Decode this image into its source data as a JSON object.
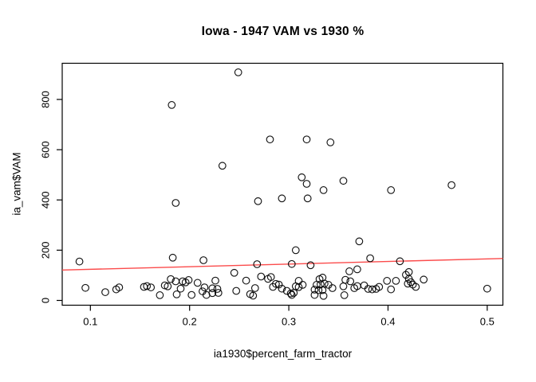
{
  "chart_data": {
    "type": "scatter",
    "title": "Iowa - 1947 VAM vs 1930 %",
    "xlabel": "ia1930$percent_farm_tractor",
    "ylabel": "ia_vam$VAM",
    "xlim": [
      0.0716,
      0.5158
    ],
    "ylim": [
      -19,
      944
    ],
    "x_ticks": [
      0.1,
      0.2,
      0.3,
      0.4,
      0.5
    ],
    "x_tick_labels": [
      "0.1",
      "0.2",
      "0.3",
      "0.4",
      "0.5"
    ],
    "y_ticks": [
      0,
      200,
      400,
      600,
      800
    ],
    "y_tick_labels": [
      "0",
      "200",
      "400",
      "600",
      "800"
    ],
    "grid": false,
    "legend": null,
    "colors": {
      "points": "#000000",
      "regression_line": "#fb4b4b",
      "axis": "#000000",
      "background": "#ffffff"
    },
    "regression_line": {
      "x1": 0.0716,
      "y1": 121,
      "x2": 0.5158,
      "y2": 167
    },
    "points": [
      [
        0.249,
        908
      ],
      [
        0.182,
        778
      ],
      [
        0.281,
        641
      ],
      [
        0.318,
        641
      ],
      [
        0.342,
        629
      ],
      [
        0.233,
        536
      ],
      [
        0.313,
        490
      ],
      [
        0.355,
        476
      ],
      [
        0.318,
        464
      ],
      [
        0.464,
        459
      ],
      [
        0.335,
        439
      ],
      [
        0.403,
        439
      ],
      [
        0.293,
        406
      ],
      [
        0.319,
        406
      ],
      [
        0.269,
        395
      ],
      [
        0.186,
        388
      ],
      [
        0.371,
        235
      ],
      [
        0.307,
        200
      ],
      [
        0.183,
        170
      ],
      [
        0.214,
        160
      ],
      [
        0.089,
        155
      ],
      [
        0.382,
        168
      ],
      [
        0.412,
        156
      ],
      [
        0.268,
        144
      ],
      [
        0.303,
        145
      ],
      [
        0.322,
        140
      ],
      [
        0.369,
        124
      ],
      [
        0.361,
        116
      ],
      [
        0.245,
        110
      ],
      [
        0.418,
        102
      ],
      [
        0.421,
        113
      ],
      [
        0.095,
        50
      ],
      [
        0.115,
        33
      ],
      [
        0.126,
        44
      ],
      [
        0.129,
        52
      ],
      [
        0.154,
        54
      ],
      [
        0.157,
        57
      ],
      [
        0.161,
        52
      ],
      [
        0.17,
        21
      ],
      [
        0.175,
        60
      ],
      [
        0.178,
        56
      ],
      [
        0.181,
        85
      ],
      [
        0.186,
        76
      ],
      [
        0.187,
        24
      ],
      [
        0.191,
        47
      ],
      [
        0.193,
        76
      ],
      [
        0.196,
        72
      ],
      [
        0.199,
        81
      ],
      [
        0.202,
        22
      ],
      [
        0.208,
        70
      ],
      [
        0.213,
        36
      ],
      [
        0.215,
        52
      ],
      [
        0.217,
        22
      ],
      [
        0.223,
        48
      ],
      [
        0.223,
        29
      ],
      [
        0.228,
        46
      ],
      [
        0.229,
        30
      ],
      [
        0.226,
        79
      ],
      [
        0.247,
        38
      ],
      [
        0.257,
        79
      ],
      [
        0.261,
        25
      ],
      [
        0.264,
        19
      ],
      [
        0.266,
        49
      ],
      [
        0.272,
        95
      ],
      [
        0.279,
        86
      ],
      [
        0.282,
        93
      ],
      [
        0.284,
        54
      ],
      [
        0.287,
        66
      ],
      [
        0.29,
        63
      ],
      [
        0.293,
        47
      ],
      [
        0.298,
        38
      ],
      [
        0.302,
        28
      ],
      [
        0.305,
        30
      ],
      [
        0.303,
        22
      ],
      [
        0.307,
        56
      ],
      [
        0.31,
        53
      ],
      [
        0.31,
        78
      ],
      [
        0.314,
        62
      ],
      [
        0.326,
        22
      ],
      [
        0.33,
        41
      ],
      [
        0.326,
        43
      ],
      [
        0.328,
        62
      ],
      [
        0.331,
        85
      ],
      [
        0.332,
        64
      ],
      [
        0.334,
        91
      ],
      [
        0.334,
        41
      ],
      [
        0.336,
        67
      ],
      [
        0.34,
        62
      ],
      [
        0.344,
        49
      ],
      [
        0.335,
        18
      ],
      [
        0.356,
        21
      ],
      [
        0.357,
        82
      ],
      [
        0.355,
        56
      ],
      [
        0.362,
        76
      ],
      [
        0.366,
        49
      ],
      [
        0.369,
        57
      ],
      [
        0.376,
        60
      ],
      [
        0.38,
        46
      ],
      [
        0.384,
        44
      ],
      [
        0.388,
        46
      ],
      [
        0.391,
        54
      ],
      [
        0.399,
        78
      ],
      [
        0.403,
        44
      ],
      [
        0.408,
        78
      ],
      [
        0.42,
        67
      ],
      [
        0.421,
        86
      ],
      [
        0.423,
        73
      ],
      [
        0.425,
        63
      ],
      [
        0.428,
        54
      ],
      [
        0.436,
        83
      ],
      [
        0.5,
        47
      ]
    ]
  }
}
